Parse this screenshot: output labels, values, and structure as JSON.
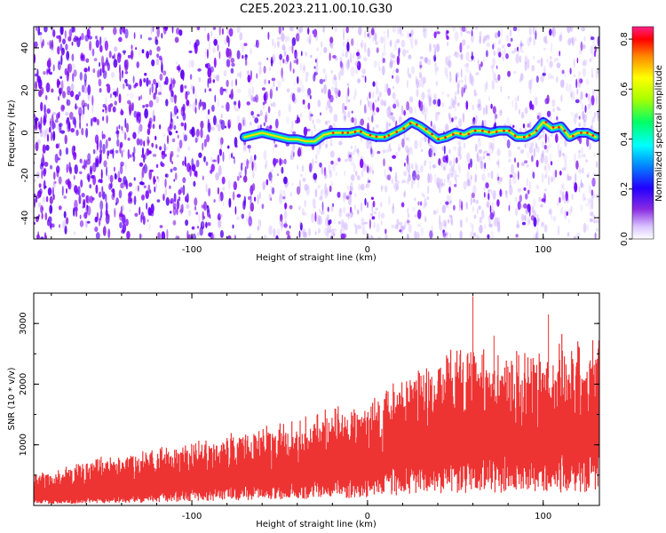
{
  "figure_title": "C2E5.2023.211.00.10.G30",
  "chart_data": [
    {
      "type": "heatmap",
      "title": "C2E5.2023.211.00.10.G30",
      "xlabel": "Height of straight line (km)",
      "ylabel": "Frequency (Hz)",
      "xlim": [
        -190,
        132
      ],
      "ylim": [
        -50,
        50
      ],
      "x_ticks": [
        -100,
        0,
        100
      ],
      "y_ticks": [
        -40,
        -20,
        0,
        20,
        40
      ],
      "grid": false,
      "colorbar": {
        "label": "Normalized spectral amplitude",
        "range": [
          0,
          0.85
        ],
        "ticks": [
          0.0,
          0.2,
          0.4,
          0.6,
          0.8
        ],
        "colors": [
          "#ffffff",
          "#e8d8ff",
          "#8a2be2",
          "#6a00ff",
          "#0033ff",
          "#00ffff",
          "#00ff66",
          "#aaff00",
          "#ffff00",
          "#ff8800",
          "#ff0000",
          "#ff2288"
        ]
      },
      "ridge": {
        "x": [
          -70,
          -60,
          -50,
          -45,
          -40,
          -35,
          -30,
          -25,
          -20,
          -15,
          -10,
          -5,
          0,
          5,
          10,
          15,
          20,
          25,
          30,
          35,
          40,
          45,
          50,
          55,
          60,
          65,
          70,
          75,
          80,
          85,
          90,
          95,
          100,
          105,
          110,
          115,
          120,
          125,
          130
        ],
        "y": [
          -2,
          0,
          -2,
          -3,
          -3,
          -4,
          -4,
          -1,
          0,
          0,
          0,
          1,
          -1,
          -2,
          -2,
          0,
          2,
          5,
          3,
          0,
          -3,
          -2,
          0,
          -1,
          1,
          1,
          0,
          1,
          1,
          -2,
          -2,
          0,
          5,
          2,
          3,
          -2,
          0,
          0,
          -2
        ]
      }
    },
    {
      "type": "area",
      "xlabel": "Height of straight line (km)",
      "ylabel": "SNR (10 * v/v)",
      "xlim": [
        -190,
        132
      ],
      "ylim": [
        0,
        3500
      ],
      "x_ticks": [
        -100,
        0,
        100
      ],
      "y_ticks": [
        1000,
        2000,
        3000
      ],
      "grid": false,
      "series": [
        {
          "color": "#ee3333",
          "envelope": {
            "x": [
              -190,
              -170,
              -150,
              -130,
              -110,
              -90,
              -70,
              -50,
              -30,
              -10,
              10,
              30,
              50,
              70,
              90,
              110,
              132
            ],
            "lower": [
              80,
              80,
              120,
              150,
              200,
              250,
              280,
              320,
              350,
              400,
              500,
              600,
              650,
              700,
              700,
              700,
              750
            ],
            "upper": [
              500,
              650,
              820,
              900,
              1000,
              1100,
              1200,
              1400,
              1500,
              1700,
              1900,
              2300,
              2550,
              2500,
              2500,
              2700,
              2700
            ]
          },
          "spikes": [
            [
              60,
              3450
            ],
            [
              103,
              3150
            ],
            [
              72,
              2800
            ],
            [
              45,
              2480
            ]
          ]
        }
      ]
    }
  ]
}
